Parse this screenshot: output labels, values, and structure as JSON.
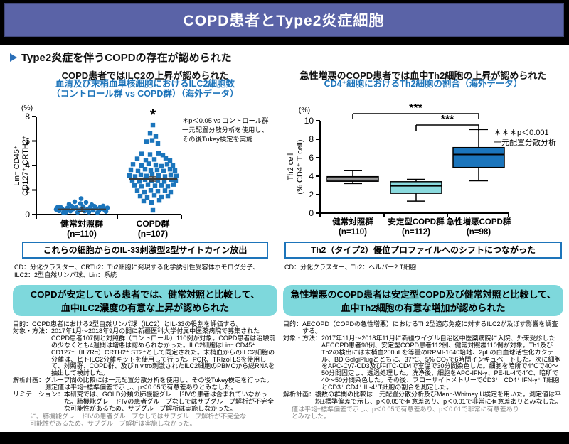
{
  "header": {
    "title": "COPD患者とType2炎症細胞"
  },
  "main_heading": {
    "text": "Type2炎症を伴うCOPDの存在が認められた"
  },
  "colors": {
    "header_bg": "#5a63a7",
    "accent_blue": "#1d74ba",
    "teal_box": "#7ed8dc",
    "marker_blue": "#1b75bc",
    "dark_box": "#454547",
    "cyan_box": "#8adade"
  },
  "left": {
    "title": "COPD患者ではILC2の上昇が認められた",
    "subtitle_line1": "血清及び末梢血単核細胞におけるILC2細胞数",
    "subtitle_line2": "（コントロール群 vs COPD群）（海外データ）",
    "result_box": "これらの細胞からのIL-33刺激型2型サイトカイン放出",
    "abbreviations": "CD：分化クラスター、CRTh2：Th2細胞に発現する化学誘引性受容体ホモログ分子、ILC2：2型自然リンパ球、Lin：系統",
    "conclusion_line1": "COPDが安定している患者では、健常対照と比較して、",
    "conclusion_line2": "血中ILC2濃度の有意な上昇が認められた",
    "methods": [
      {
        "label": "目的：",
        "text": "COPD患者における2型自然リンパ球（ILC2）とIL-33の役割を評価する。"
      },
      {
        "label": "対象・方法：",
        "text": "2017年1月～2018年9月の間に新疆医科大学付属中医薬病院で募集されたCOPD患者107例と対照群（コントロール）110例が対象。COPD患者は治験前の少なくとも4週間は増悪は認められなかった。ILC2細胞はLin⁻ CD45⁺ CD127⁺（IL7Rα）CRTH2⁺ ST2⁺として同定された。末梢血からのILC2細胞の分離は、ヒトILC2分離キットを使用して行った。PCR、TRIzol LSを使用して、対照群、COPD群、及びin vitro刺激されたILC2細胞のPBMCから総RNAを抽出して検討した。"
      },
      {
        "label": "解析計画：",
        "text": "グループ間の比較には一元配置分散分析を使用し、その後Tukey検定を行った。測定値は平均±標準偏差で示し、p＜0.05で有意差ありとみなした。"
      },
      {
        "label": "リミテーション：",
        "text": "本研究では、GOLD分類の肺機能グレードIVの患者は含まれていなかった。肺機能グレードIVの患者グループなしではサブグループ解析が不完全な可能性があるため、サブグループ解析は実施しなかった。"
      }
    ],
    "ghost": [
      "に。肺機能グレードIVの患者グループなしではサブグループ解析が不完全な",
      "可能性があるため、サブグループ解析は実施しなかった。"
    ]
  },
  "right": {
    "title": "急性増悪のCOPD患者では血中Th2細胞の上昇が認められた",
    "subtitle_line1": "CD4⁺細胞におけるTh2細胞の割合（海外データ）",
    "subtitle_line2": "",
    "result_box": "Th2（タイプ2）優位プロファイルへのシフトにつながった",
    "abbreviations": "CD：分化クラスター、Th2：ヘルパー2 T細胞",
    "conclusion_line1": "急性増悪のCOPD患者は安定型COPD及び健常対照と比較して、",
    "conclusion_line2": "血中Th2細胞の有意な増加が認められた",
    "methods": [
      {
        "label": "目的：",
        "text": "AECOPD（COPDの急性増悪）におけるTh2型適応免疫に対するILC2が及ぼす影響を調査する。"
      },
      {
        "label": "対象・方法：",
        "text": "2017年11月～2018年11月に新疆ウイグル自治区中医薬病院に入院、外来受診したAECOPD患者98例、安定型COPD患者112例、健常対照群110例が対象。Th1及びTh2の検出には末梢血200μLを等量のRPMI-1640培地、2μLの白血球活性化カクテル、BD GolgiPlugとともに、37℃、5% CO₂で6時間インキュベートした。次に細胞をAPC-Cy7-CD3及びFITC-CD4で室温で30分間染色した。細胞を暗所で4℃で40～50分間固定し、透過処理した。洗浄後、細胞をAPC-IFN-γ、PE-IL-4で4℃、暗所で40～50分間染色した。その後、フローサイトメトリーでCD3⁺⁻ CD4⁺ IFN-γ⁺ T細胞とCD3⁺ CD4⁺ IL-4⁺T細胞の割合を測定した。"
      },
      {
        "label": "解析計画：",
        "text": "複数の群間の比較は一元配置分散分析及びMann-Whitney U検定を用いた。測定値は平均±標準偏差で示し、p＜0.05で有意差あり、p＜0.01で非常に有意差ありとみなした。"
      }
    ],
    "ghost": [
      "値は平均±標準偏差で示し、p＜0.05で有意差あり、p＜0.01で非常に有意差あり",
      "とみなした。"
    ]
  },
  "chart_data": [
    {
      "type": "scatter",
      "title": "血清及び末梢血単核細胞におけるILC2細胞数（コントロール群 vs COPD群）",
      "y_unit": "(%)",
      "ylim": [
        0,
        8
      ],
      "yticks": [
        8,
        6,
        4,
        2,
        0
      ],
      "ylabel_line1": "Lin⁻ CD45⁺",
      "ylabel_line2": "CD127⁺ CRTH2⁺",
      "marker_color": "#1b75bc",
      "mean_se": 0.18,
      "annotation": [
        "＊p＜0.05 vs コントロール群",
        "一元配置分散分析を使用し、",
        "その後Tukey検定を実施"
      ],
      "groups": [
        {
          "label": "健常対照群",
          "n_label": "(n=110)",
          "marker": "circle",
          "mean": 0.42,
          "points": [
            [
              -36,
              0.42
            ],
            [
              -32,
              0.3
            ],
            [
              -28,
              0.5
            ],
            [
              -24,
              0.35
            ],
            [
              -20,
              0.55
            ],
            [
              -16,
              0.28
            ],
            [
              -12,
              0.45
            ],
            [
              -8,
              0.6
            ],
            [
              -4,
              0.33
            ],
            [
              0,
              0.5
            ],
            [
              4,
              0.28
            ],
            [
              8,
              0.45
            ],
            [
              12,
              0.6
            ],
            [
              16,
              0.35
            ],
            [
              20,
              0.52
            ],
            [
              24,
              0.3
            ],
            [
              28,
              0.48
            ],
            [
              32,
              0.38
            ],
            [
              36,
              0.55
            ],
            [
              -30,
              0.62
            ],
            [
              -22,
              0.2
            ],
            [
              -14,
              0.68
            ],
            [
              -6,
              0.18
            ],
            [
              2,
              0.65
            ],
            [
              10,
              0.2
            ],
            [
              18,
              0.68
            ],
            [
              26,
              0.62
            ],
            [
              34,
              0.25
            ],
            [
              -18,
              0.85
            ],
            [
              -2,
              0.9
            ],
            [
              14,
              0.8
            ],
            [
              -10,
              1.05
            ],
            [
              6,
              1.0
            ],
            [
              -1,
              1.3
            ],
            [
              22,
              0.15
            ],
            [
              -26,
              0.15
            ],
            [
              30,
              0.7
            ],
            [
              -34,
              0.6
            ]
          ]
        },
        {
          "label": "COPD群",
          "n_label": "(n=107)",
          "marker": "square",
          "mean": 2.9,
          "sig": "*",
          "points": [
            [
              0,
              7.3
            ],
            [
              -4,
              6.65
            ],
            [
              4,
              6.4
            ],
            [
              -9,
              5.95
            ],
            [
              -1,
              6.05
            ],
            [
              7,
              5.8
            ],
            [
              -16,
              4.95
            ],
            [
              -4,
              4.9
            ],
            [
              8,
              5.0
            ],
            [
              14,
              4.85
            ],
            [
              -22,
              4.55
            ],
            [
              -10,
              4.45
            ],
            [
              2,
              4.5
            ],
            [
              18,
              4.6
            ],
            [
              24,
              4.4
            ],
            [
              -28,
              4.1
            ],
            [
              -16,
              4.0
            ],
            [
              -6,
              4.15
            ],
            [
              4,
              4.05
            ],
            [
              12,
              3.95
            ],
            [
              20,
              4.1
            ],
            [
              28,
              4.0
            ],
            [
              -31,
              3.65
            ],
            [
              -21,
              3.55
            ],
            [
              -11,
              3.7
            ],
            [
              -3,
              3.6
            ],
            [
              6,
              3.65
            ],
            [
              15,
              3.55
            ],
            [
              24,
              3.7
            ],
            [
              31,
              3.6
            ],
            [
              -33,
              3.2
            ],
            [
              -25,
              3.1
            ],
            [
              -17,
              3.25
            ],
            [
              -9,
              3.15
            ],
            [
              -1,
              3.3
            ],
            [
              8,
              3.2
            ],
            [
              17,
              3.1
            ],
            [
              25,
              3.25
            ],
            [
              33,
              3.15
            ],
            [
              -29,
              2.8
            ],
            [
              -19,
              2.7
            ],
            [
              -11,
              2.85
            ],
            [
              -2,
              2.75
            ],
            [
              7,
              2.8
            ],
            [
              16,
              2.7
            ],
            [
              26,
              2.85
            ],
            [
              32,
              2.75
            ],
            [
              -26,
              2.4
            ],
            [
              -16,
              2.3
            ],
            [
              -7,
              2.45
            ],
            [
              3,
              2.35
            ],
            [
              12,
              2.4
            ],
            [
              21,
              2.3
            ],
            [
              29,
              2.45
            ],
            [
              -22,
              1.95
            ],
            [
              -12,
              1.85
            ],
            [
              -3,
              2.0
            ],
            [
              7,
              1.9
            ],
            [
              17,
              1.95
            ],
            [
              25,
              1.85
            ],
            [
              -18,
              1.5
            ],
            [
              -8,
              1.4
            ],
            [
              2,
              1.55
            ],
            [
              12,
              1.45
            ],
            [
              21,
              1.5
            ],
            [
              -13,
              1.1
            ],
            [
              -2,
              1.0
            ],
            [
              9,
              1.15
            ],
            [
              0,
              0.35
            ]
          ]
        }
      ]
    },
    {
      "type": "box",
      "title": "CD4⁺細胞におけるTh2細胞の割合",
      "y_unit": "(%)",
      "ylim": [
        0,
        10
      ],
      "yticks": [
        10,
        8,
        6,
        4,
        2,
        0
      ],
      "ylabel_line1": "Th2 cell",
      "ylabel_line2": "(% CD4⁺ T cell)",
      "annotation": [
        "＊＊＊p＜0.001",
        "一元配置分散分析"
      ],
      "brackets": [
        {
          "from": 0,
          "to": 2,
          "label": "***",
          "level": 0
        },
        {
          "from": 1,
          "to": 2,
          "label": "***",
          "level": 1
        }
      ],
      "groups": [
        {
          "label": "健常対照群",
          "n_label": "(n=110)",
          "low": 3.2,
          "q1": 3.45,
          "median": 3.7,
          "q3": 3.95,
          "high": 4.6,
          "fill": "#454547",
          "median_stroke": "#9a9a9a"
        },
        {
          "label": "安定型COPD群",
          "n_label": "(n=112)",
          "low": 1.3,
          "q1": 2.15,
          "median": 2.95,
          "q3": 3.4,
          "high": 3.65,
          "fill": "#8adade",
          "median_stroke": "#000000"
        },
        {
          "label": "急性増悪COPD群",
          "n_label": "(n=98)",
          "low": 3.5,
          "q1": 4.95,
          "median": 6.35,
          "q3": 7.1,
          "high": 9.05,
          "fill": "#1b75bc",
          "median_stroke": "#000000"
        }
      ]
    }
  ]
}
